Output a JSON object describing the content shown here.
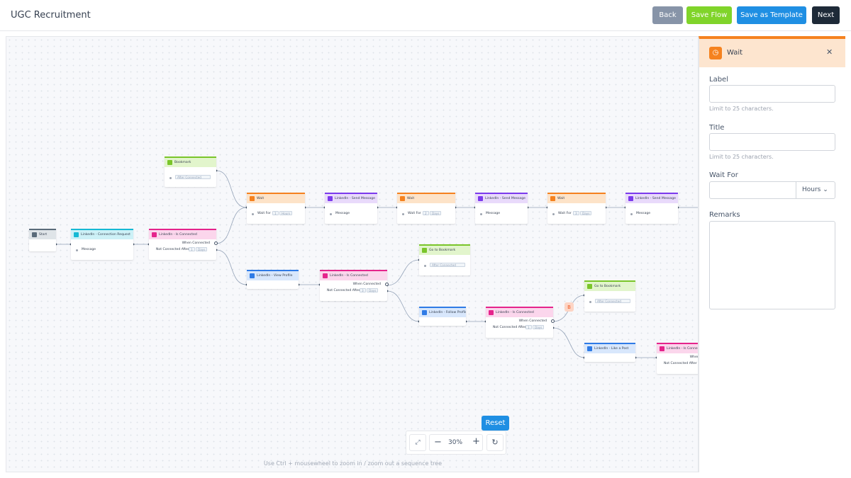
{
  "header": {
    "title": "UGC Recruitment",
    "buttons": [
      "Back",
      "Save Flow",
      "Save as Template",
      "Next"
    ]
  },
  "nodes": [
    {
      "label": "Start"
    },
    {
      "label": "LinkedIn - Connection Request",
      "field": "Message"
    },
    {
      "label": "LinkedIn - Is Connected",
      "when": "When Connected",
      "after": "Not Connected After",
      "amount": 1,
      "unit": "Days"
    },
    {
      "label": "Bookmark",
      "option": "After Connected"
    },
    {
      "label": "Wait",
      "field": "Wait For",
      "amount": 1,
      "unit": "Hours"
    },
    {
      "label": "LinkedIn - Send Message",
      "field": "Message"
    },
    {
      "label": "Wait",
      "field": "Wait For",
      "amount": 2,
      "unit": "Days"
    },
    {
      "label": "LinkedIn - Send Message",
      "field": "Message"
    },
    {
      "label": "Wait",
      "field": "Wait For",
      "amount": 3,
      "unit": "Days"
    },
    {
      "label": "LinkedIn - Send Message",
      "field": "Message"
    },
    {
      "label": "LinkedIn - View Profile"
    },
    {
      "label": "LinkedIn - Is Connected",
      "when": "When Connected",
      "after": "Not Connected After",
      "amount": 3,
      "unit": "Days"
    },
    {
      "label": "Go to Bookmark",
      "option": "After Connected"
    },
    {
      "label": "LinkedIn - Follow Profile"
    },
    {
      "label": "LinkedIn - Is Connected",
      "when": "When Connected",
      "after": "Not Connected After",
      "amount": 1,
      "unit": "Days"
    },
    {
      "label": "Go to Bookmark",
      "option": "After Connected"
    },
    {
      "label": "LinkedIn - Like a Post"
    },
    {
      "label": "LinkedIn - Is Connected",
      "when": "When Connected",
      "after": "Not Connected After"
    }
  ],
  "badge": "B",
  "zoom": {
    "tooltip": "Reset",
    "level": "30%",
    "hint": "Use Ctrl + mousewheel to zoom in / zoom out a sequence tree"
  },
  "panel": {
    "title": "Wait",
    "fields": [
      {
        "label": "Label",
        "hint": "Limit to 25 characters."
      },
      {
        "label": "Title",
        "hint": "Limit to 25 characters."
      },
      {
        "label": "Wait For",
        "unit": "Hours"
      },
      {
        "label": "Remarks"
      }
    ]
  }
}
